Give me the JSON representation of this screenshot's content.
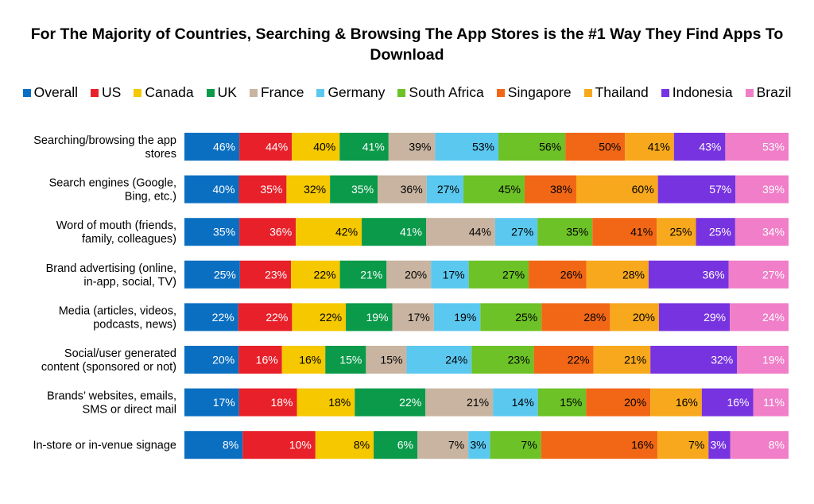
{
  "chart_data": {
    "type": "bar",
    "orientation": "horizontal",
    "stacked": "100%",
    "title": "For The Majority of Countries, Searching & Browsing The App Stores is the #1 Way They Find Apps To Download",
    "legend_position": "top",
    "grid": false,
    "categories": [
      [
        "Searching/browsing the app",
        "stores"
      ],
      [
        "Search engines (Google,",
        "Bing, etc.)"
      ],
      [
        "Word of mouth (friends,",
        "family, colleagues)"
      ],
      [
        "Brand advertising (online,",
        "in-app, social, TV)"
      ],
      [
        "Media (articles, videos,",
        "podcasts, news)"
      ],
      [
        "Social/user generated",
        "content (sponsored or not)"
      ],
      [
        "Brands’ websites, emails,",
        "SMS or direct mail"
      ],
      [
        "In-store or in-venue signage"
      ]
    ],
    "series": [
      {
        "name": "Overall",
        "color": "#0b6fc1",
        "values": [
          46,
          40,
          35,
          25,
          22,
          20,
          17,
          8
        ]
      },
      {
        "name": "US",
        "color": "#e8202a",
        "values": [
          44,
          35,
          36,
          23,
          22,
          16,
          18,
          10
        ]
      },
      {
        "name": "Canada",
        "color": "#f5c800",
        "values": [
          40,
          32,
          42,
          22,
          22,
          16,
          18,
          8
        ]
      },
      {
        "name": "UK",
        "color": "#0a9a4a",
        "values": [
          41,
          35,
          41,
          21,
          19,
          15,
          22,
          6
        ]
      },
      {
        "name": "France",
        "color": "#c8b4a0",
        "values": [
          39,
          36,
          44,
          20,
          17,
          15,
          21,
          7
        ]
      },
      {
        "name": "Germany",
        "color": "#5bc8f0",
        "values": [
          53,
          27,
          27,
          17,
          19,
          24,
          14,
          3
        ]
      },
      {
        "name": "South Africa",
        "color": "#6cc226",
        "values": [
          56,
          45,
          35,
          27,
          25,
          23,
          15,
          7
        ]
      },
      {
        "name": "Singapore",
        "color": "#f26716",
        "values": [
          50,
          38,
          41,
          26,
          28,
          22,
          20,
          16
        ]
      },
      {
        "name": "Thailand",
        "color": "#f7a81c",
        "values": [
          41,
          60,
          25,
          28,
          20,
          21,
          16,
          7
        ]
      },
      {
        "name": "Indonesia",
        "color": "#7733e0",
        "values": [
          43,
          57,
          25,
          36,
          29,
          32,
          16,
          3
        ]
      },
      {
        "name": "Brazil",
        "color": "#f07ec8",
        "values": [
          53,
          39,
          34,
          27,
          24,
          19,
          11,
          8
        ]
      }
    ],
    "value_suffix": "%"
  }
}
